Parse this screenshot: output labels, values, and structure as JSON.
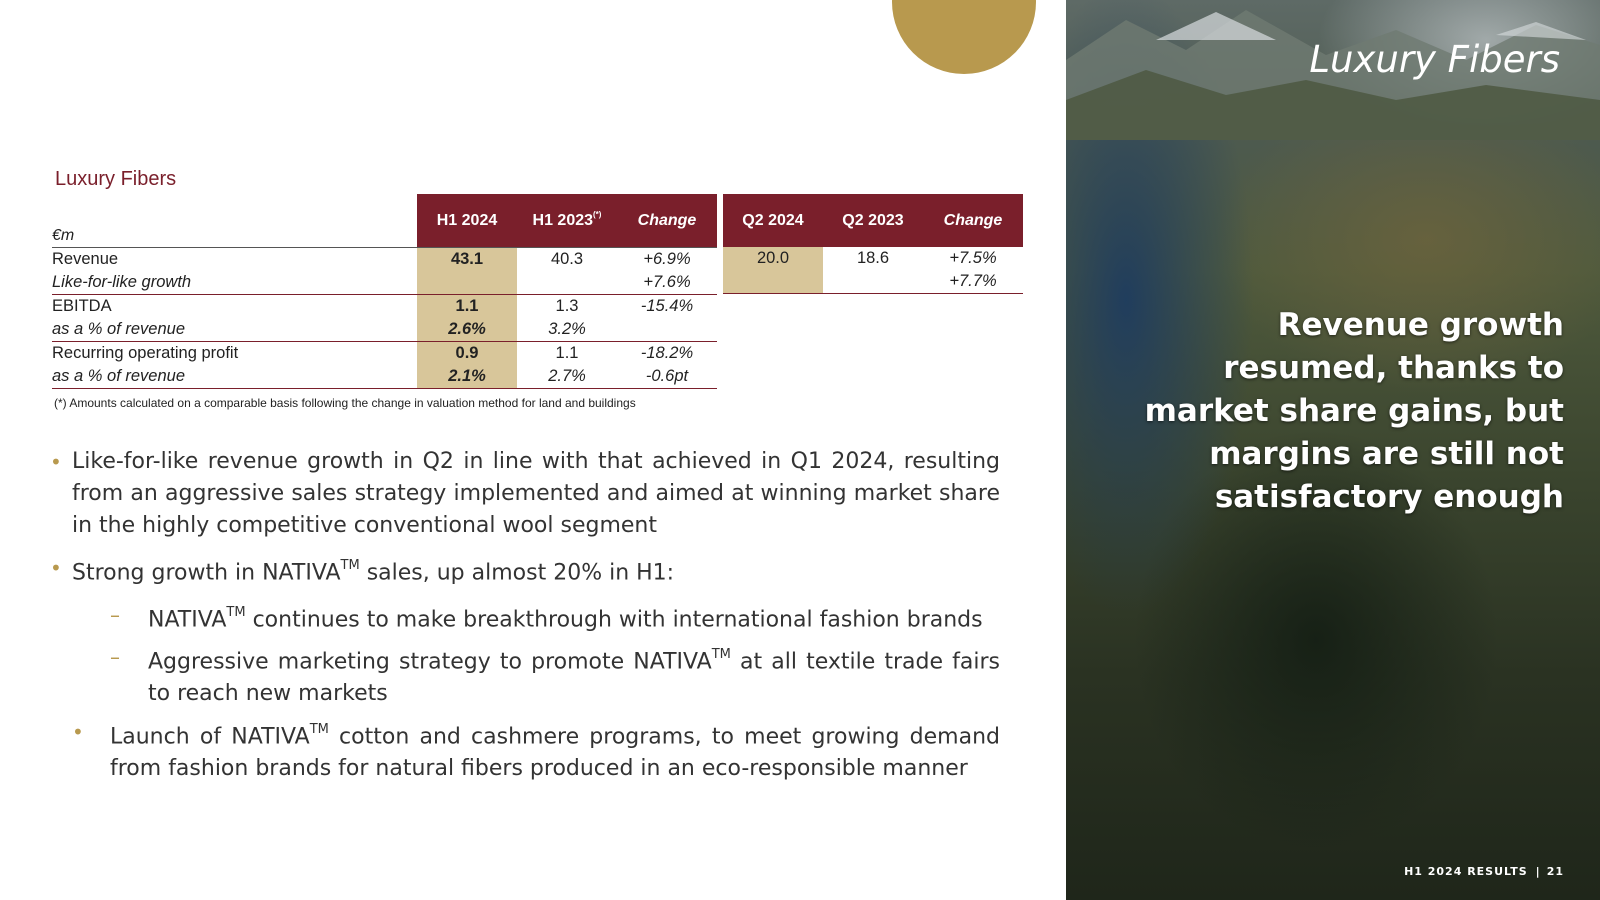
{
  "slide": {
    "section_title": "Luxury Fibers",
    "panel_title": "Luxury Fibers",
    "headline": "Revenue growth resumed, thanks to market share gains, but margins are still not satisfactory enough",
    "footer_label": "H1 2024 RESULTS",
    "page_number": "21"
  },
  "colors": {
    "brand": "#7a1f2b",
    "gold": "#b8994e",
    "highlight": "#d8c69a"
  },
  "table_h1": {
    "unit": "€m",
    "headers": [
      "H1 2024",
      "H1 2023",
      "Change"
    ],
    "h1_2023_marker": "(*)",
    "rows": [
      {
        "label": "Revenue",
        "h1_2024": "43.1",
        "h1_2023": "40.3",
        "change": "+6.9%"
      },
      {
        "label": "Like-for-like growth",
        "h1_2024": "",
        "h1_2023": "",
        "change": "+7.6%"
      },
      {
        "label": "EBITDA",
        "h1_2024": "1.1",
        "h1_2023": "1.3",
        "change": "-15.4%"
      },
      {
        "label": "as a % of revenue",
        "h1_2024": "2.6%",
        "h1_2023": "3.2%",
        "change": ""
      },
      {
        "label": "Recurring operating profit",
        "h1_2024": "0.9",
        "h1_2023": "1.1",
        "change": "-18.2%"
      },
      {
        "label": "as a % of revenue",
        "h1_2024": "2.1%",
        "h1_2023": "2.7%",
        "change": "-0.6pt"
      }
    ]
  },
  "table_q2": {
    "headers": [
      "Q2 2024",
      "Q2 2023",
      "Change"
    ],
    "rows": [
      {
        "q2_2024": "20.0",
        "q2_2023": "18.6",
        "change": "+7.5%"
      },
      {
        "q2_2024": "",
        "q2_2023": "",
        "change": "+7.7%"
      }
    ]
  },
  "footnote": "(*) Amounts calculated on a comparable basis following the change in valuation method for land and buildings",
  "bullets": {
    "b1": "Like-for-like revenue growth in Q2 in line with that achieved in Q1 2024, resulting from an aggressive sales strategy implemented and aimed at winning market share in the highly competitive conventional wool segment",
    "b2_pre": "Strong growth in NATIVA",
    "b2_post": " sales, up almost 20% in H1:",
    "tm": "TM",
    "s1_pre": "NATIVA",
    "s1_post": " continues to make breakthrough with international fashion brands",
    "s2_pre": "Aggressive marketing strategy to promote NATIVA",
    "s2_post": " at all textile trade fairs to reach new markets",
    "b3_pre": "Launch of NATIVA",
    "b3_post": " cotton and cashmere programs, to meet growing demand from fashion brands for natural fibers produced in an eco-responsible manner",
    "bullet_glyph": "•",
    "dash_glyph": "–"
  }
}
